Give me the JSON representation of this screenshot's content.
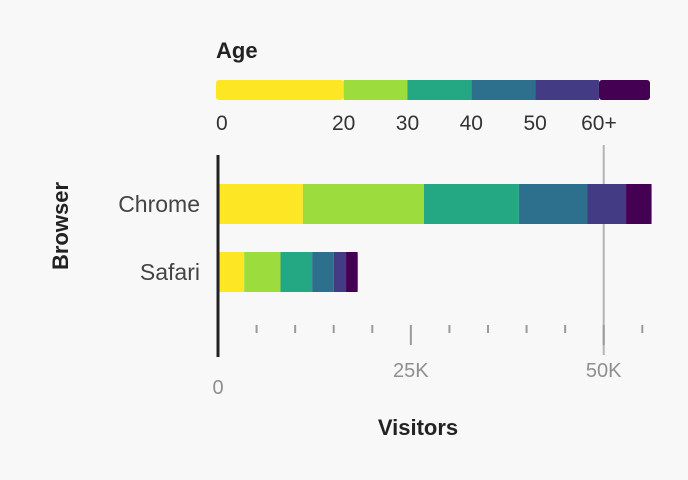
{
  "chart_data": {
    "type": "bar",
    "orientation": "horizontal",
    "stacked": true,
    "xlabel": "Visitors",
    "ylabel": "Browser",
    "xlim": [
      0,
      56000
    ],
    "xticks": [
      {
        "value": 0,
        "label": "0"
      },
      {
        "value": 25000,
        "label": "25K"
      },
      {
        "value": 50000,
        "label": "50K"
      }
    ],
    "grid": "vertical line at 50K",
    "categories": [
      "Chrome",
      "Safari"
    ],
    "legend": {
      "title": "Age",
      "placement": "top",
      "stops": [
        {
          "value": 0,
          "label": "0"
        },
        {
          "value": 20,
          "label": "20"
        },
        {
          "value": 30,
          "label": "30"
        },
        {
          "value": 40,
          "label": "40"
        },
        {
          "value": 50,
          "label": "50"
        },
        {
          "value": 60,
          "label": "60+"
        }
      ],
      "max": 68
    },
    "series": [
      {
        "age_group": "0-20",
        "color": "#fde725",
        "values": [
          11000,
          3400
        ]
      },
      {
        "age_group": "20-30",
        "color": "#9cdc3c",
        "values": [
          15700,
          4700
        ]
      },
      {
        "age_group": "30-40",
        "color": "#24a884",
        "values": [
          12300,
          4100
        ]
      },
      {
        "age_group": "40-50",
        "color": "#2d708e",
        "values": [
          8900,
          2800
        ]
      },
      {
        "age_group": "50-60",
        "color": "#433c85",
        "values": [
          5000,
          1600
        ]
      },
      {
        "age_group": "60+",
        "color": "#440154",
        "values": [
          3300,
          1500
        ]
      }
    ]
  }
}
